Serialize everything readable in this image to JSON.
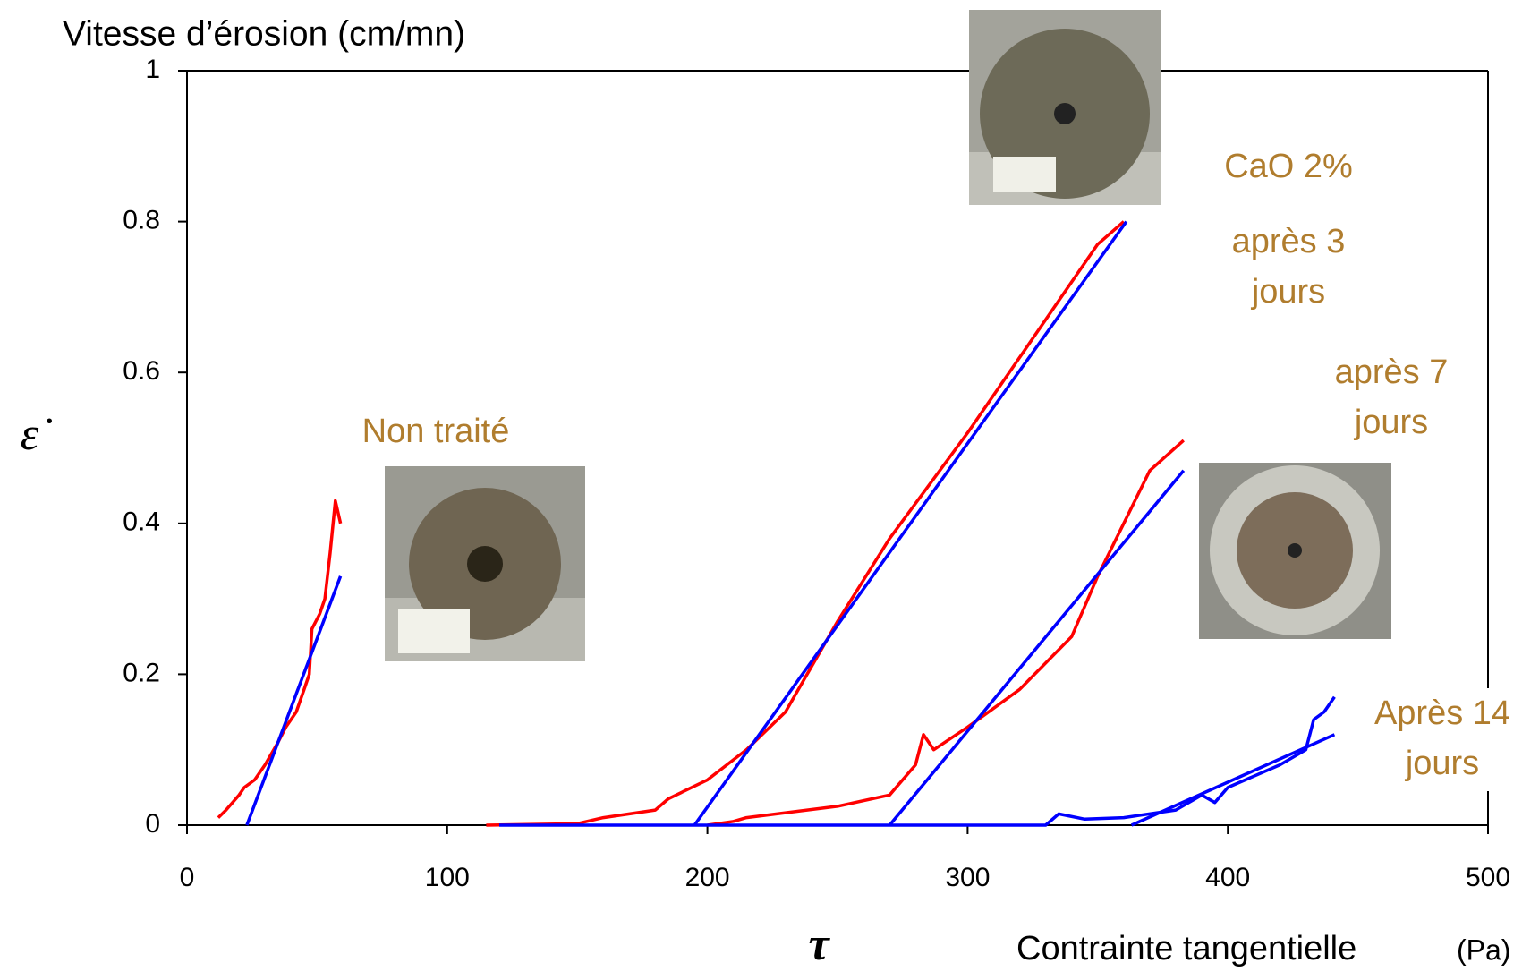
{
  "chart_data": {
    "type": "line",
    "y_label": "Vitesse d’érosion (cm/mn)",
    "y_symbol": "ε̇",
    "x_symbol": "τ",
    "x_label": "Contrainte tangentielle",
    "x_unit": "(Pa)",
    "xlim": [
      0,
      500
    ],
    "xticks": [
      0,
      100,
      200,
      300,
      400,
      500
    ],
    "ylim": [
      0,
      1
    ],
    "yticks": [
      0,
      0.2,
      0.4,
      0.6,
      0.8,
      1
    ],
    "series": [
      {
        "color": "#ff0000",
        "x": [
          12,
          15,
          20,
          22,
          26,
          30,
          35,
          38,
          42,
          45,
          47,
          48,
          51,
          53,
          55,
          57,
          59
        ],
        "values": [
          0.01,
          0.02,
          0.04,
          0.05,
          0.06,
          0.08,
          0.11,
          0.13,
          0.15,
          0.18,
          0.2,
          0.26,
          0.28,
          0.3,
          0.36,
          0.43,
          0.4
        ]
      },
      {
        "color": "#0000ff",
        "x": [
          23,
          59
        ],
        "values": [
          0,
          0.33
        ]
      },
      {
        "color": "#ff0000",
        "x": [
          115,
          150,
          160,
          180,
          185,
          200,
          215,
          230,
          250,
          270,
          300,
          320,
          340,
          350,
          360
        ],
        "values": [
          0,
          0.002,
          0.01,
          0.02,
          0.035,
          0.06,
          0.1,
          0.15,
          0.27,
          0.38,
          0.52,
          0.62,
          0.72,
          0.77,
          0.8
        ]
      },
      {
        "color": "#0000ff",
        "x": [
          195,
          361
        ],
        "values": [
          0,
          0.8
        ]
      },
      {
        "color": "#ff0000",
        "x": [
          200,
          210,
          215,
          250,
          270,
          280,
          283,
          287,
          300,
          320,
          340,
          350,
          360,
          370,
          383
        ],
        "values": [
          0,
          0.005,
          0.01,
          0.025,
          0.04,
          0.08,
          0.12,
          0.1,
          0.13,
          0.18,
          0.25,
          0.33,
          0.4,
          0.47,
          0.51
        ]
      },
      {
        "color": "#0000ff",
        "x": [
          270,
          383
        ],
        "values": [
          0,
          0.47
        ]
      },
      {
        "color": "#0000ff",
        "x": [
          120,
          330,
          335,
          345,
          360,
          380,
          390,
          395,
          400,
          420,
          430,
          433,
          437,
          441
        ],
        "values": [
          0,
          0,
          0.015,
          0.008,
          0.01,
          0.02,
          0.04,
          0.03,
          0.05,
          0.08,
          0.1,
          0.14,
          0.15,
          0.17
        ]
      },
      {
        "color": "#0000ff",
        "x": [
          363,
          441
        ],
        "values": [
          0,
          0.12
        ]
      }
    ],
    "annotations": [
      {
        "lines": [
          "Non traité"
        ]
      },
      {
        "lines": [
          "CaO 2%"
        ]
      },
      {
        "lines": [
          "après 3",
          "jours"
        ]
      },
      {
        "lines": [
          "après 7",
          "jours"
        ]
      },
      {
        "lines": [
          "Après 14",
          "jours"
        ]
      }
    ]
  }
}
